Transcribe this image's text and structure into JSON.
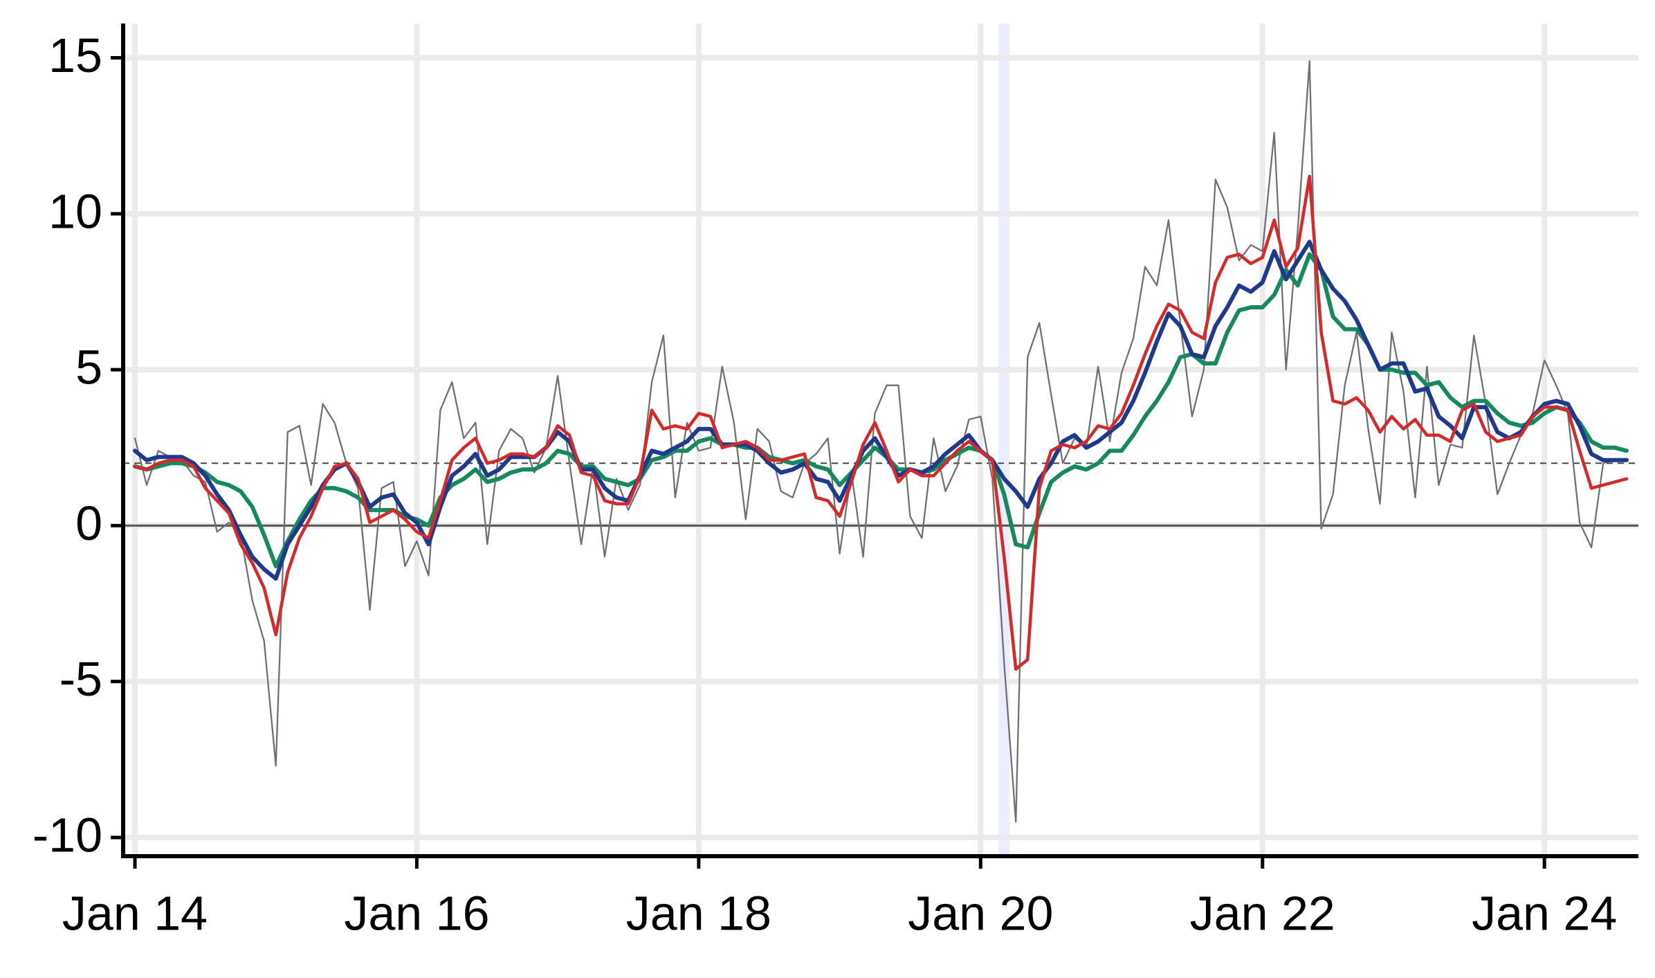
{
  "chart_data": {
    "type": "line",
    "x": [
      "2014-01",
      "2014-02",
      "2014-03",
      "2014-04",
      "2014-05",
      "2014-06",
      "2014-07",
      "2014-08",
      "2014-09",
      "2014-10",
      "2014-11",
      "2014-12",
      "2015-01",
      "2015-02",
      "2015-03",
      "2015-04",
      "2015-05",
      "2015-06",
      "2015-07",
      "2015-08",
      "2015-09",
      "2015-10",
      "2015-11",
      "2015-12",
      "2016-01",
      "2016-02",
      "2016-03",
      "2016-04",
      "2016-05",
      "2016-06",
      "2016-07",
      "2016-08",
      "2016-09",
      "2016-10",
      "2016-11",
      "2016-12",
      "2017-01",
      "2017-02",
      "2017-03",
      "2017-04",
      "2017-05",
      "2017-06",
      "2017-07",
      "2017-08",
      "2017-09",
      "2017-10",
      "2017-11",
      "2017-12",
      "2018-01",
      "2018-02",
      "2018-03",
      "2018-04",
      "2018-05",
      "2018-06",
      "2018-07",
      "2018-08",
      "2018-09",
      "2018-10",
      "2018-11",
      "2018-12",
      "2019-01",
      "2019-02",
      "2019-03",
      "2019-04",
      "2019-05",
      "2019-06",
      "2019-07",
      "2019-08",
      "2019-09",
      "2019-10",
      "2019-11",
      "2019-12",
      "2020-01",
      "2020-02",
      "2020-03",
      "2020-04",
      "2020-05",
      "2020-06",
      "2020-07",
      "2020-08",
      "2020-09",
      "2020-10",
      "2020-11",
      "2020-12",
      "2021-01",
      "2021-02",
      "2021-03",
      "2021-04",
      "2021-05",
      "2021-06",
      "2021-07",
      "2021-08",
      "2021-09",
      "2021-10",
      "2021-11",
      "2021-12",
      "2022-01",
      "2022-02",
      "2022-03",
      "2022-04",
      "2022-05",
      "2022-06",
      "2022-07",
      "2022-08",
      "2022-09",
      "2022-10",
      "2022-11",
      "2022-12",
      "2023-01",
      "2023-02",
      "2023-03",
      "2023-04",
      "2023-05",
      "2023-06",
      "2023-07",
      "2023-08",
      "2023-09",
      "2023-10",
      "2023-11",
      "2023-12",
      "2024-01",
      "2024-02",
      "2024-03",
      "2024-04",
      "2024-05",
      "2024-06",
      "2024-07",
      "2024-08"
    ],
    "series": [
      {
        "color": "#707070",
        "width": 2.3,
        "values": [
          2.8,
          1.3,
          2.4,
          2.2,
          2.1,
          1.6,
          1.4,
          -0.2,
          0.1,
          -0.3,
          -2.4,
          -3.7,
          -7.7,
          3.0,
          3.2,
          1.3,
          3.9,
          3.3,
          2.0,
          1.2,
          -2.7,
          1.2,
          1.4,
          -1.3,
          -0.5,
          -1.6,
          3.7,
          4.6,
          2.8,
          3.3,
          -0.6,
          2.4,
          3.1,
          2.8,
          1.7,
          2.5,
          4.8,
          2.0,
          -0.6,
          1.9,
          -1.0,
          1.5,
          0.5,
          1.3,
          4.6,
          6.1,
          0.9,
          3.3,
          2.4,
          2.5,
          5.1,
          3.3,
          0.2,
          3.1,
          2.7,
          1.1,
          0.9,
          2.0,
          2.3,
          2.8,
          -0.9,
          1.7,
          -1.0,
          3.6,
          4.5,
          4.5,
          0.3,
          -0.4,
          2.8,
          1.1,
          1.9,
          3.4,
          3.5,
          1.5,
          -4.4,
          -9.5,
          5.4,
          6.5,
          4.2,
          2.0,
          2.8,
          2.5,
          5.1,
          2.7,
          4.9,
          6.0,
          8.3,
          7.7,
          9.8,
          6.5,
          3.5,
          5.0,
          11.1,
          10.2,
          8.5,
          9.0,
          8.8,
          12.6,
          5.0,
          9.5,
          14.9,
          -0.1,
          1.0,
          4.5,
          6.2,
          3.1,
          0.7,
          6.2,
          4.3,
          0.9,
          5.1,
          1.3,
          2.6,
          2.5,
          6.1,
          3.9,
          1.0,
          2.0,
          2.9,
          3.6,
          5.3,
          4.5,
          3.6,
          0.1,
          -0.7,
          2.0,
          2.1,
          2.1
        ]
      },
      {
        "color": "#168a5c",
        "width": 6,
        "values": [
          1.9,
          1.8,
          1.9,
          2.0,
          2.0,
          1.9,
          1.7,
          1.4,
          1.3,
          1.1,
          0.6,
          -0.3,
          -1.3,
          -0.5,
          0.2,
          0.8,
          1.2,
          1.2,
          1.1,
          0.9,
          0.5,
          0.5,
          0.5,
          0.3,
          0.2,
          0.0,
          0.9,
          1.3,
          1.5,
          1.8,
          1.4,
          1.5,
          1.7,
          1.8,
          1.8,
          2.0,
          2.4,
          2.3,
          1.9,
          1.9,
          1.5,
          1.4,
          1.3,
          1.5,
          2.1,
          2.2,
          2.4,
          2.4,
          2.7,
          2.8,
          2.6,
          2.6,
          2.5,
          2.5,
          2.2,
          2.1,
          2.0,
          2.1,
          1.9,
          1.8,
          1.3,
          1.7,
          2.1,
          2.5,
          2.2,
          1.8,
          1.8,
          1.7,
          1.8,
          2.1,
          2.3,
          2.5,
          2.4,
          2.1,
          1.0,
          -0.6,
          -0.7,
          0.4,
          1.4,
          1.7,
          1.9,
          1.8,
          2.0,
          2.4,
          2.4,
          2.9,
          3.5,
          4.0,
          4.6,
          5.4,
          5.5,
          5.2,
          5.2,
          6.2,
          6.9,
          7.0,
          7.0,
          7.4,
          8.2,
          7.7,
          8.7,
          8.2,
          6.7,
          6.3,
          6.3,
          5.8,
          5.0,
          5.0,
          4.9,
          4.9,
          4.5,
          4.6,
          4.1,
          3.8,
          4.0,
          4.0,
          3.6,
          3.3,
          3.2,
          3.3,
          3.6,
          3.8,
          3.7,
          3.3,
          2.7,
          2.5,
          2.5,
          2.4
        ]
      },
      {
        "color": "#1f3a8c",
        "width": 6,
        "values": [
          2.4,
          2.1,
          2.2,
          2.2,
          2.2,
          2.0,
          1.6,
          1.0,
          0.5,
          -0.3,
          -1.0,
          -1.4,
          -1.7,
          -0.6,
          0.0,
          0.6,
          1.3,
          1.8,
          2.0,
          1.4,
          0.6,
          0.9,
          1.0,
          0.4,
          0.1,
          -0.6,
          0.6,
          1.6,
          1.9,
          2.3,
          1.6,
          1.8,
          2.2,
          2.2,
          2.2,
          2.5,
          3.0,
          2.7,
          1.8,
          1.8,
          1.2,
          0.9,
          0.8,
          1.6,
          2.4,
          2.3,
          2.5,
          2.7,
          3.1,
          3.1,
          2.6,
          2.6,
          2.6,
          2.4,
          2.0,
          1.7,
          1.8,
          2.0,
          1.5,
          1.4,
          0.8,
          1.6,
          2.4,
          2.8,
          2.2,
          1.6,
          1.8,
          1.7,
          1.9,
          2.3,
          2.6,
          2.9,
          2.4,
          2.1,
          1.5,
          1.1,
          0.6,
          1.5,
          2.0,
          2.7,
          2.9,
          2.5,
          2.7,
          3.0,
          3.3,
          4.0,
          4.9,
          5.9,
          6.8,
          6.4,
          5.5,
          5.4,
          6.4,
          7.0,
          7.7,
          7.5,
          7.8,
          8.8,
          7.9,
          8.5,
          9.1,
          8.2,
          7.6,
          7.2,
          6.6,
          5.8,
          5.0,
          5.2,
          5.2,
          4.3,
          4.4,
          3.5,
          3.2,
          2.8,
          3.8,
          3.8,
          3.0,
          2.8,
          3.0,
          3.5,
          3.9,
          4.0,
          3.9,
          3.2,
          2.3,
          2.1,
          2.1,
          2.1
        ]
      },
      {
        "color": "#d42a2a",
        "width": 4.6,
        "values": [
          1.9,
          1.8,
          2.0,
          2.1,
          2.1,
          1.9,
          1.2,
          0.8,
          0.4,
          -0.6,
          -1.2,
          -2.0,
          -3.5,
          -1.5,
          -0.4,
          0.3,
          1.2,
          1.9,
          2.0,
          1.5,
          0.1,
          0.3,
          0.5,
          0.2,
          -0.2,
          -0.4,
          0.8,
          2.1,
          2.5,
          2.8,
          2.0,
          2.1,
          2.3,
          2.3,
          2.2,
          2.5,
          3.2,
          2.9,
          1.7,
          1.6,
          0.8,
          0.7,
          0.7,
          1.6,
          3.7,
          3.1,
          3.2,
          3.1,
          3.6,
          3.5,
          2.5,
          2.6,
          2.7,
          2.5,
          2.1,
          2.1,
          2.2,
          2.3,
          0.9,
          0.8,
          0.3,
          1.4,
          2.6,
          3.3,
          2.4,
          1.4,
          1.8,
          1.6,
          1.6,
          2.0,
          2.4,
          2.7,
          2.4,
          2.1,
          -1.0,
          -4.6,
          -4.3,
          1.2,
          2.4,
          2.6,
          2.5,
          2.7,
          3.2,
          3.1,
          3.6,
          4.5,
          5.5,
          6.4,
          7.1,
          6.9,
          6.2,
          6.0,
          7.8,
          8.6,
          8.7,
          8.4,
          8.6,
          9.8,
          8.3,
          8.9,
          11.2,
          6.2,
          4.0,
          3.9,
          4.1,
          3.7,
          3.0,
          3.5,
          3.1,
          3.4,
          2.9,
          2.9,
          2.7,
          3.7,
          3.9,
          3.0,
          2.7,
          2.8,
          2.9,
          3.5,
          3.8,
          3.8,
          3.7,
          2.4,
          1.2,
          1.3,
          1.4,
          1.5
        ]
      }
    ],
    "xlim": [
      "2013-12",
      "2024-09"
    ],
    "xticks": [
      {
        "value": "2014-01",
        "label": "Jan 14"
      },
      {
        "value": "2016-01",
        "label": "Jan 16"
      },
      {
        "value": "2018-01",
        "label": "Jan 18"
      },
      {
        "value": "2020-01",
        "label": "Jan 20"
      },
      {
        "value": "2022-01",
        "label": "Jan 22"
      },
      {
        "value": "2024-01",
        "label": "Jan 24"
      }
    ],
    "ylim": [
      -10.6,
      16.1
    ],
    "yticks": [
      -10,
      -5,
      0,
      5,
      10,
      15
    ],
    "grid": true,
    "hlines": [
      {
        "value": 0,
        "style": "solid"
      },
      {
        "value": 2,
        "style": "dashed"
      }
    ],
    "shaded_period": "2020-03"
  }
}
